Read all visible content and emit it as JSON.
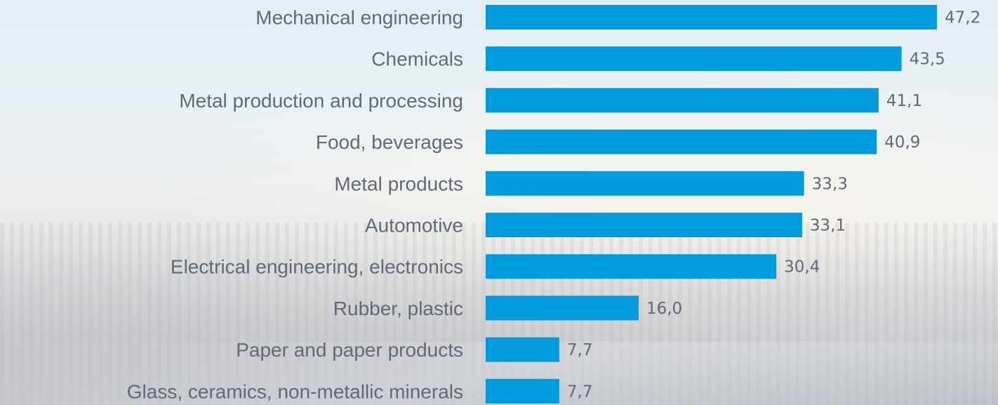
{
  "chart_data": {
    "type": "bar",
    "orientation": "horizontal",
    "categories": [
      "Mechanical engineering",
      "Chemicals",
      "Metal production and processing",
      "Food, beverages",
      "Metal products",
      "Automotive",
      "Electrical engineering, electronics",
      "Rubber, plastic",
      "Paper and paper products",
      "Glass, ceramics, non-metallic minerals"
    ],
    "values": [
      47.2,
      43.5,
      41.1,
      40.9,
      33.3,
      33.1,
      30.4,
      16.0,
      7.7,
      7.7
    ],
    "value_labels": [
      "47,2",
      "43,5",
      "41,1",
      "40,9",
      "33,3",
      "33,1",
      "30,4",
      "16,0",
      "7,7",
      "7,7"
    ],
    "xlim": [
      0,
      47.2
    ],
    "grid": false,
    "legend": "none",
    "bar_color": "#009ade",
    "label_color": "#5f6b78"
  }
}
